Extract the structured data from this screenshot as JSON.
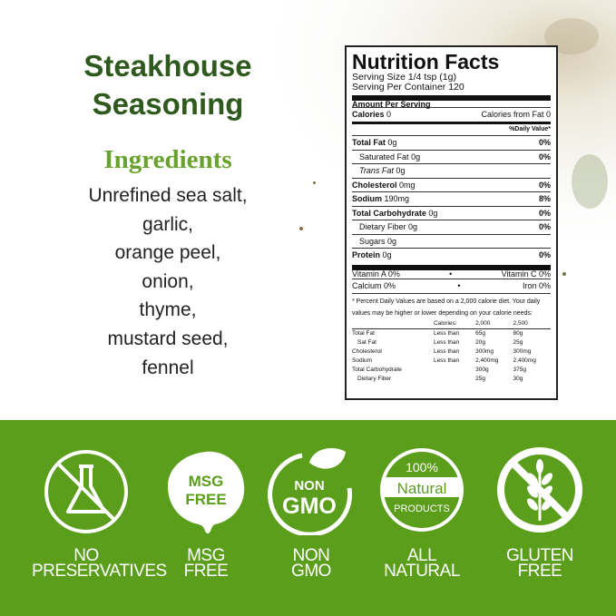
{
  "product": {
    "title_line1": "Steakhouse",
    "title_line2": "Seasoning",
    "ingredients_heading": "Ingredients",
    "ingredients": [
      "Unrefined sea salt,",
      "garlic,",
      "orange peel,",
      "onion,",
      "thyme,",
      "mustard seed,",
      "fennel"
    ]
  },
  "nutrition": {
    "title": "Nutrition Facts",
    "serving_size": "Serving Size 1/4 tsp (1g)",
    "servings": "Serving Per Container 120",
    "amount_per_serving": "Amount Per Serving",
    "calories_label": "Calories",
    "calories_value": "0",
    "calories_fat": "Calories from Fat 0",
    "daily_value": "%Daily Value*",
    "rows": [
      {
        "label": "Total Fat",
        "value": "0g",
        "pct": "0%",
        "bold": true,
        "indent": false
      },
      {
        "label": "Saturated Fat",
        "value": "0g",
        "pct": "0%",
        "bold": false,
        "indent": true
      },
      {
        "label": "Trans Fat",
        "value": "0g",
        "pct": "",
        "bold": false,
        "indent": true,
        "italic": true
      },
      {
        "label": "Cholesterol",
        "value": "0mg",
        "pct": "0%",
        "bold": true,
        "indent": false
      },
      {
        "label": "Sodium",
        "value": "190mg",
        "pct": "8%",
        "bold": true,
        "indent": false
      },
      {
        "label": "Total Carbohydrate",
        "value": "0g",
        "pct": "0%",
        "bold": true,
        "indent": false
      },
      {
        "label": "Dietary Fiber",
        "value": "0g",
        "pct": "0%",
        "bold": false,
        "indent": true
      },
      {
        "label": "Sugars",
        "value": "0g",
        "pct": "",
        "bold": false,
        "indent": true
      },
      {
        "label": "Protein",
        "value": "0g",
        "pct": "0%",
        "bold": true,
        "indent": false
      }
    ],
    "vitamin_a": "Vitamin A 0%",
    "vitamin_c": "Vitamin C 0%",
    "calcium": "Calcium 0%",
    "iron": "Iron 0%",
    "bullet": "•",
    "footnote": "* Percent Daily Values are based on a 2,000 calorie diet. Your daily values may be higher or lower depending on your calorie needs:",
    "table_header": [
      "",
      "Calories:",
      "2,000",
      "2,500"
    ],
    "table_rows": [
      [
        "Total Fat",
        "Less than",
        "65g",
        "80g"
      ],
      [
        "Sat Fat",
        "Less than",
        "20g",
        "25g"
      ],
      [
        "Cholesterol",
        "Less than",
        "300mg",
        "300mg"
      ],
      [
        "Sodium",
        "Less than",
        "2,400mg",
        "2,400mg"
      ],
      [
        "Total Carbohydrate",
        "",
        "300g",
        "375g"
      ],
      [
        "Dietary Fiber",
        "",
        "25g",
        "30g"
      ]
    ]
  },
  "badges": [
    {
      "icon": "no-flask-icon",
      "line1": "NO",
      "line2": "PRESERVATIVES"
    },
    {
      "icon": "msg-free-seal-icon",
      "line1": "MSG",
      "line2": "FREE",
      "seal_text1": "MSG",
      "seal_text2": "FREE"
    },
    {
      "icon": "non-gmo-leaf-icon",
      "line1": "NON",
      "line2": "GMO",
      "seal_text1": "NON",
      "seal_text2": "GMO"
    },
    {
      "icon": "natural-products-icon",
      "line1": "ALL",
      "line2": "NATURAL",
      "seal_text1": "100%",
      "seal_text2": "Natural",
      "seal_text3": "PRODUCTS"
    },
    {
      "icon": "no-wheat-icon",
      "line1": "GLUTEN",
      "line2": "FREE"
    }
  ],
  "colors": {
    "band": "#5b9e1b",
    "title": "#2f5a1e",
    "ingredients_heading": "#6aa230"
  }
}
